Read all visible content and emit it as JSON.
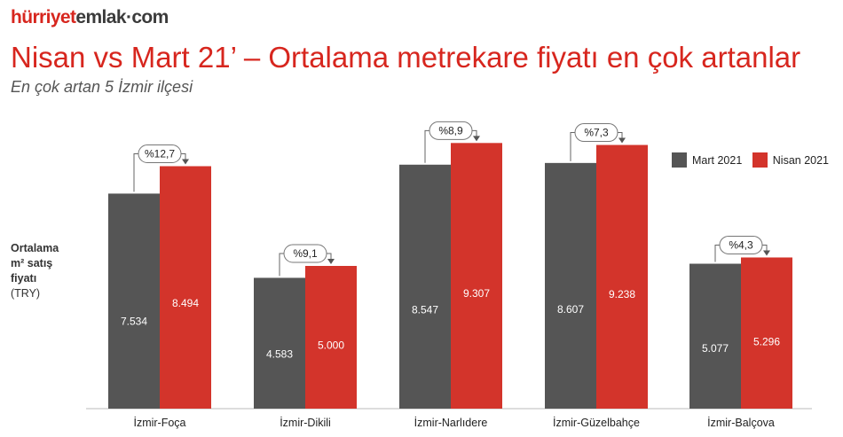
{
  "logo": {
    "part1": "hürriyet",
    "part2": "emlak",
    "part3": "·com"
  },
  "title": "Nisan vs Mart 21’ – Ortalama metrekare fiyatı en çok artanlar",
  "subtitle": "En çok artan 5 İzmir ilçesi",
  "ylabel": {
    "line1": "Ortalama",
    "line2": "m² satış",
    "line3": "fiyatı",
    "line4": "(TRY)"
  },
  "colors": {
    "mart": "#555555",
    "nisan": "#d3342b",
    "brand_red": "#d7261e"
  },
  "chart_data": {
    "type": "bar",
    "categories": [
      "İzmir-Foça",
      "İzmir-Dikili",
      "İzmir-Narlıdere",
      "İzmir-Güzelbahçe",
      "İzmir-Balçova"
    ],
    "series": [
      {
        "name": "Mart 2021",
        "values": [
          7534,
          4583,
          8547,
          8607,
          5077
        ],
        "labels": [
          "7.534",
          "4.583",
          "8.547",
          "8.607",
          "5.077"
        ]
      },
      {
        "name": "Nisan 2021",
        "values": [
          8494,
          5000,
          9307,
          9238,
          5296
        ],
        "labels": [
          "8.494",
          "5.000",
          "9.307",
          "9.238",
          "5.296"
        ]
      }
    ],
    "annotations": [
      "%12,7",
      "%9,1",
      "%8,9",
      "%7,3",
      "%4,3"
    ],
    "ylim": [
      0,
      10000
    ],
    "legend_position": "top-right",
    "grid": false
  }
}
